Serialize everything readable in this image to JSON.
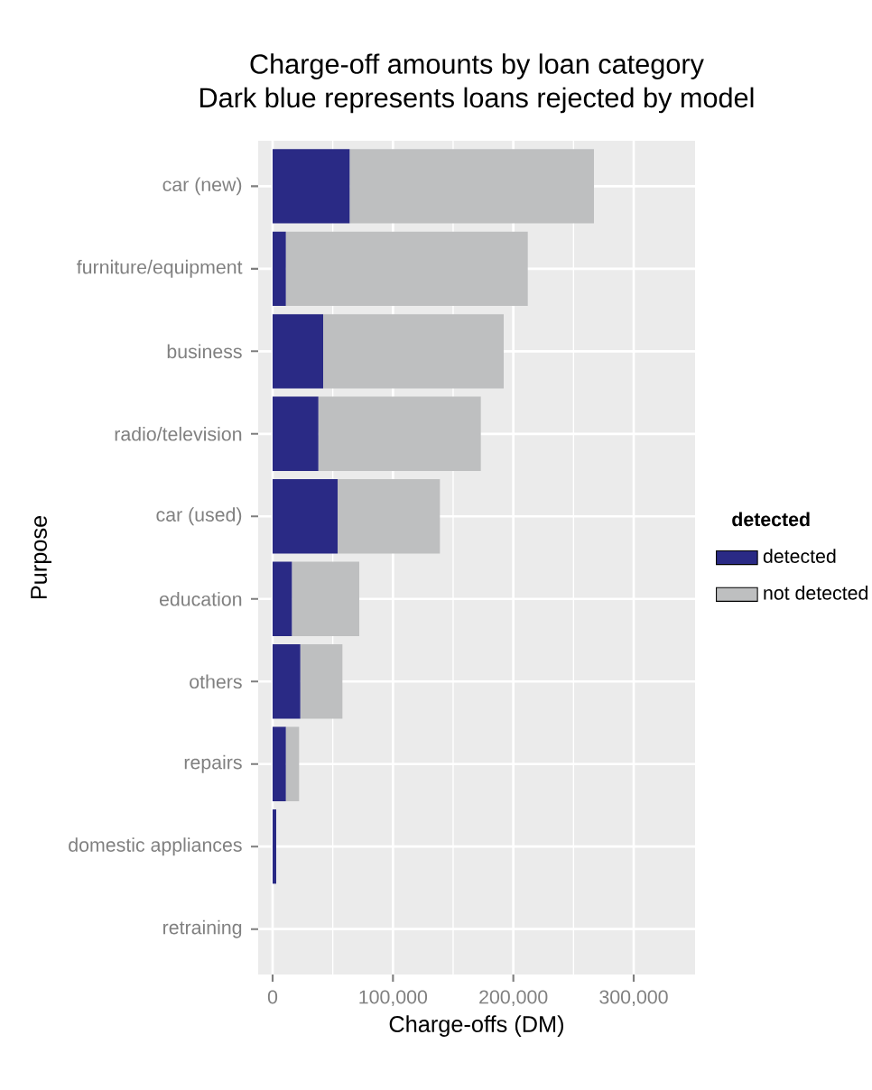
{
  "chart_data": {
    "type": "bar",
    "orientation": "horizontal",
    "stacked": true,
    "title": "Charge-off amounts by loan category",
    "subtitle": "Dark blue represents loans rejected by model",
    "xlabel": "Charge-offs (DM)",
    "ylabel": "Purpose",
    "legend_title": "detected",
    "categories": [
      "car (new)",
      "furniture/equipment",
      "business",
      "radio/television",
      "car (used)",
      "education",
      "others",
      "repairs",
      "domestic appliances",
      "retraining"
    ],
    "series": [
      {
        "name": "detected",
        "color": "#2a2a85",
        "values": [
          64000,
          11000,
          42000,
          38000,
          54000,
          16000,
          23000,
          11000,
          3000,
          0
        ]
      },
      {
        "name": "not detected",
        "color": "#bebfc0",
        "values": [
          203000,
          201000,
          150000,
          135000,
          85000,
          56000,
          35000,
          11000,
          0,
          0
        ]
      }
    ],
    "xlim": [
      -12000,
      351000
    ],
    "xticks": [
      0,
      {
        "value": 100000,
        "label": "100,000"
      },
      {
        "value": 200000,
        "label": "200,000"
      },
      {
        "value": 300000,
        "label": "300,000"
      }
    ],
    "grid": true,
    "legend": "right"
  }
}
